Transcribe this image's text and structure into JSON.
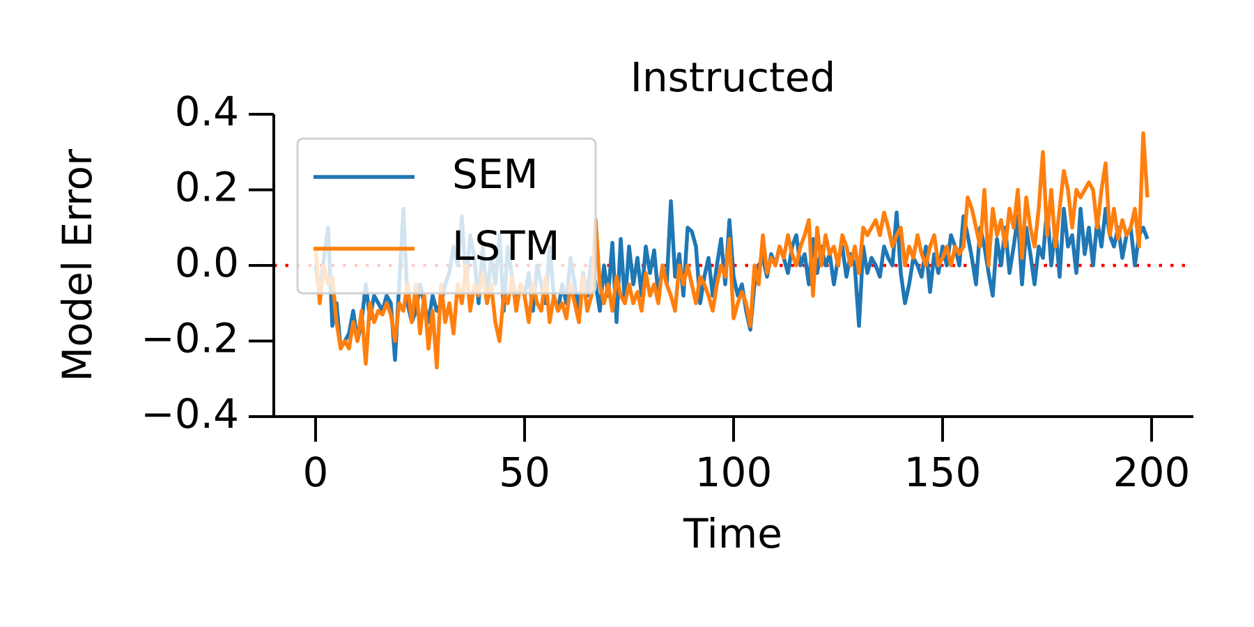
{
  "chart_data": {
    "type": "line",
    "title": "Instructed",
    "x_label": "Time",
    "y_label": "Model Error",
    "x": [
      0,
      1,
      2,
      3,
      4,
      5,
      6,
      7,
      8,
      9,
      10,
      11,
      12,
      13,
      14,
      15,
      16,
      17,
      18,
      19,
      20,
      21,
      22,
      23,
      24,
      25,
      26,
      27,
      28,
      29,
      30,
      31,
      32,
      33,
      34,
      35,
      36,
      37,
      38,
      39,
      40,
      41,
      42,
      43,
      44,
      45,
      46,
      47,
      48,
      49,
      50,
      51,
      52,
      53,
      54,
      55,
      56,
      57,
      58,
      59,
      60,
      61,
      62,
      63,
      64,
      65,
      66,
      67,
      68,
      69,
      70,
      71,
      72,
      73,
      74,
      75,
      76,
      77,
      78,
      79,
      80,
      81,
      82,
      83,
      84,
      85,
      86,
      87,
      88,
      89,
      90,
      91,
      92,
      93,
      94,
      95,
      96,
      97,
      98,
      99,
      100,
      101,
      102,
      103,
      104,
      105,
      106,
      107,
      108,
      109,
      110,
      111,
      112,
      113,
      114,
      115,
      116,
      117,
      118,
      119,
      120,
      121,
      122,
      123,
      124,
      125,
      126,
      127,
      128,
      129,
      130,
      131,
      132,
      133,
      134,
      135,
      136,
      137,
      138,
      139,
      140,
      141,
      142,
      143,
      144,
      145,
      146,
      147,
      148,
      149,
      150,
      151,
      152,
      153,
      154,
      155,
      156,
      157,
      158,
      159,
      160,
      161,
      162,
      163,
      164,
      165,
      166,
      167,
      168,
      169,
      170,
      171,
      172,
      173,
      174,
      175,
      176,
      177,
      178,
      179,
      180,
      181,
      182,
      183,
      184,
      185,
      186,
      187,
      188,
      189,
      190,
      191,
      192,
      193,
      194,
      195,
      196,
      197,
      198,
      199
    ],
    "series": [
      {
        "name": "SEM",
        "color": "#1f77b4",
        "values": [
          0.0,
          -0.08,
          0.02,
          0.1,
          -0.16,
          -0.1,
          -0.22,
          -0.2,
          -0.18,
          -0.12,
          -0.2,
          -0.15,
          -0.05,
          -0.14,
          -0.08,
          -0.1,
          -0.12,
          -0.08,
          -0.1,
          -0.25,
          -0.05,
          0.15,
          -0.1,
          -0.15,
          -0.12,
          -0.05,
          -0.1,
          -0.15,
          -0.08,
          -0.12,
          -0.1,
          -0.05,
          -0.02,
          0.05,
          0.0,
          0.13,
          -0.05,
          0.08,
          0.02,
          -0.1,
          0.05,
          -0.08,
          0.02,
          -0.05,
          0.08,
          -0.12,
          0.05,
          -0.03,
          -0.1,
          -0.05,
          -0.08,
          -0.02,
          -0.12,
          0.0,
          -0.05,
          -0.1,
          0.05,
          -0.08,
          -0.12,
          -0.05,
          -0.1,
          0.02,
          -0.05,
          -0.12,
          -0.02,
          -0.08,
          0.02,
          -0.05,
          -0.12,
          0.0,
          -0.08,
          0.06,
          -0.15,
          0.07,
          -0.1,
          0.05,
          -0.05,
          0.02,
          -0.08,
          0.05,
          -0.02,
          0.04,
          -0.08,
          0.0,
          -0.05,
          0.17,
          -0.03,
          0.03,
          -0.08,
          0.1,
          0.09,
          0.05,
          -0.1,
          -0.03,
          0.02,
          -0.08,
          0.0,
          0.07,
          -0.05,
          0.12,
          -0.03,
          -0.08,
          -0.05,
          -0.12,
          -0.17,
          -0.05,
          0.0,
          0.02,
          -0.03,
          0.03,
          0.0,
          0.05,
          0.02,
          -0.02,
          0.05,
          0.08,
          0.0,
          0.03,
          -0.05,
          0.07,
          -0.02,
          0.05,
          0.0,
          0.03,
          -0.05,
          0.02,
          0.05,
          -0.03,
          0.03,
          0.0,
          -0.16,
          0.05,
          -0.02,
          0.02,
          0.0,
          -0.03,
          0.05,
          0.02,
          0.0,
          0.14,
          -0.02,
          -0.1,
          -0.05,
          0.02,
          0.0,
          -0.03,
          0.05,
          -0.07,
          0.03,
          -0.02,
          0.05,
          0.0,
          0.08,
          0.05,
          0.0,
          0.13,
          0.08,
          0.02,
          -0.05,
          0.1,
          0.05,
          -0.02,
          -0.08,
          0.07,
          0.0,
          0.1,
          -0.02,
          0.05,
          0.13,
          -0.05,
          0.1,
          0.03,
          -0.05,
          0.05,
          0.02,
          0.15,
          0.0,
          0.1,
          -0.03,
          0.15,
          0.05,
          0.08,
          -0.02,
          0.15,
          0.03,
          0.1,
          0.0,
          0.12,
          0.05,
          0.15,
          0.08,
          0.05,
          0.1,
          0.02,
          0.08,
          0.1,
          0.0,
          0.08,
          0.1,
          0.07
        ]
      },
      {
        "name": "LSTM",
        "color": "#ff7f0e",
        "values": [
          0.05,
          -0.1,
          0.0,
          -0.05,
          -0.03,
          -0.15,
          -0.22,
          -0.2,
          -0.22,
          -0.15,
          -0.2,
          -0.12,
          -0.26,
          -0.1,
          -0.15,
          -0.12,
          -0.13,
          -0.1,
          -0.13,
          -0.2,
          -0.1,
          -0.12,
          -0.05,
          -0.15,
          -0.05,
          -0.18,
          -0.08,
          -0.22,
          -0.12,
          -0.27,
          -0.05,
          -0.15,
          -0.1,
          -0.18,
          -0.05,
          -0.1,
          0.0,
          -0.12,
          -0.05,
          -0.08,
          -0.02,
          -0.1,
          -0.05,
          -0.15,
          -0.2,
          -0.08,
          -0.1,
          -0.03,
          -0.12,
          -0.05,
          -0.08,
          -0.15,
          -0.05,
          -0.1,
          -0.12,
          -0.03,
          -0.15,
          -0.08,
          -0.12,
          -0.1,
          -0.14,
          -0.05,
          -0.1,
          -0.15,
          -0.03,
          -0.12,
          -0.08,
          0.12,
          -0.05,
          -0.1,
          -0.05,
          -0.12,
          -0.03,
          -0.08,
          -0.1,
          -0.05,
          -0.1,
          -0.07,
          -0.12,
          -0.02,
          -0.08,
          -0.05,
          -0.1,
          0.0,
          -0.05,
          -0.08,
          -0.12,
          0.0,
          -0.05,
          0.0,
          -0.05,
          -0.1,
          -0.03,
          -0.05,
          -0.08,
          -0.12,
          -0.05,
          0.0,
          -0.03,
          0.07,
          -0.14,
          -0.1,
          -0.07,
          -0.1,
          -0.16,
          0.0,
          -0.05,
          0.08,
          -0.02,
          0.02,
          0.0,
          0.05,
          0.02,
          0.08,
          0.03,
          0.0,
          0.05,
          0.08,
          0.12,
          -0.08,
          0.1,
          0.0,
          0.08,
          0.03,
          0.05,
          0.0,
          0.08,
          0.05,
          0.0,
          0.05,
          -0.02,
          0.1,
          0.08,
          0.1,
          0.12,
          0.08,
          0.14,
          0.1,
          0.05,
          0.08,
          0.1,
          0.0,
          0.05,
          0.02,
          0.08,
          0.03,
          0.0,
          0.05,
          0.08,
          0.0,
          0.02,
          0.05,
          0.0,
          0.05,
          0.03,
          0.05,
          0.18,
          0.15,
          0.1,
          0.05,
          0.2,
          0.0,
          0.15,
          0.08,
          0.12,
          0.05,
          0.15,
          0.1,
          0.2,
          0.02,
          0.18,
          0.1,
          0.05,
          0.15,
          0.3,
          0.08,
          0.2,
          0.05,
          0.15,
          0.25,
          0.2,
          0.1,
          0.2,
          0.18,
          0.2,
          0.22,
          0.2,
          0.1,
          0.2,
          0.27,
          0.08,
          0.15,
          0.07,
          0.12,
          0.08,
          0.1,
          0.15,
          0.05,
          0.35,
          0.18
        ]
      }
    ],
    "xlim": [
      -10,
      210
    ],
    "ylim": [
      -0.4,
      0.4
    ],
    "xticks": [
      0,
      50,
      100,
      150,
      200
    ],
    "yticks": [
      {
        "value": -0.4,
        "label": "−0.4"
      },
      {
        "value": -0.2,
        "label": "−0.2"
      },
      {
        "value": 0,
        "label": "0.0"
      },
      0.2,
      0.4
    ],
    "hline": 0,
    "hline_color": "red",
    "legend": "upper left",
    "grid": false
  }
}
